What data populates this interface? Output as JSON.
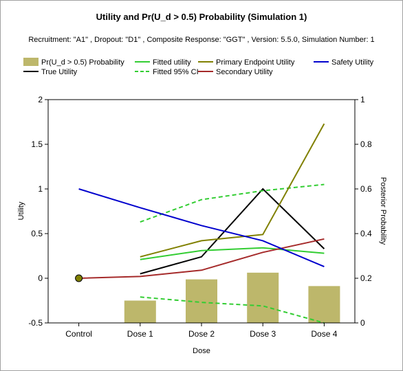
{
  "chart_data": {
    "type": "bar+line",
    "title": "Utility and Pr(U_d > 0.5) Probability  (Simulation 1)",
    "subtitle": "Recruitment: \"A1\" , Dropout: \"D1\" , Composite Response: \"GGT\" , Version: 5.5.0, Simulation Number: 1",
    "xlabel": "Dose",
    "ylabel": "Utility",
    "y2label": "Posterior Probability",
    "categories": [
      "Control",
      "Dose 1",
      "Dose 2",
      "Dose 3",
      "Dose 4"
    ],
    "ylim": [
      -0.5,
      2
    ],
    "yticks": [
      "-0.5",
      "0",
      "0.5",
      "1",
      "1.5",
      "2"
    ],
    "y2lim": [
      0,
      1
    ],
    "y2ticks": [
      "0",
      "0.2",
      "0.4",
      "0.6",
      "0.8",
      "1"
    ],
    "grid": false,
    "legend_position": "top",
    "bars": {
      "name": "Pr(U_d > 0.5) Probability",
      "color": "#bdb76b",
      "axis": "right",
      "values": [
        null,
        0.1,
        0.195,
        0.225,
        0.165
      ]
    },
    "series": [
      {
        "name": "True Utility",
        "color": "#000000",
        "style": "solid",
        "values": [
          null,
          0.05,
          0.24,
          1.0,
          0.33
        ]
      },
      {
        "name": "Fitted utility",
        "color": "#32cd32",
        "style": "solid",
        "values": [
          null,
          0.21,
          0.31,
          0.34,
          0.28
        ]
      },
      {
        "name": "Fitted 95% CI",
        "color": "#32cd32",
        "style": "dashed",
        "values": [
          null,
          0.63,
          0.88,
          0.98,
          1.05
        ]
      },
      {
        "name": "Fitted 95% CI lower",
        "color": "#32cd32",
        "style": "dashed",
        "values": [
          null,
          -0.21,
          -0.27,
          -0.31,
          -0.5
        ]
      },
      {
        "name": "Primary Endpoint Utility",
        "color": "#808000",
        "style": "solid",
        "values": [
          null,
          0.24,
          0.42,
          0.49,
          1.73
        ]
      },
      {
        "name": "Secondary Utility",
        "color": "#a52a2a",
        "style": "solid",
        "values": [
          0.0,
          0.02,
          0.09,
          0.29,
          0.44
        ]
      },
      {
        "name": "Safety Utility",
        "color": "#0000cd",
        "style": "solid",
        "values": [
          1.0,
          0.79,
          0.59,
          0.42,
          0.13
        ]
      }
    ],
    "control_marker": {
      "value": 0.0,
      "color": "#808000"
    }
  },
  "legend": [
    {
      "label": "Pr(U_d > 0.5) Probability",
      "type": "box",
      "color": "#bdb76b"
    },
    {
      "label": "Fitted utility",
      "type": "line",
      "color": "#32cd32",
      "style": "solid"
    },
    {
      "label": "Primary Endpoint Utility",
      "type": "line",
      "color": "#808000",
      "style": "solid"
    },
    {
      "label": "Safety Utility",
      "type": "line",
      "color": "#0000cd",
      "style": "solid"
    },
    {
      "label": "True Utility",
      "type": "line",
      "color": "#000000",
      "style": "solid"
    },
    {
      "label": "Fitted 95% CI",
      "type": "line",
      "color": "#32cd32",
      "style": "dashed"
    },
    {
      "label": "Secondary Utility",
      "type": "line",
      "color": "#a52a2a",
      "style": "solid"
    }
  ]
}
